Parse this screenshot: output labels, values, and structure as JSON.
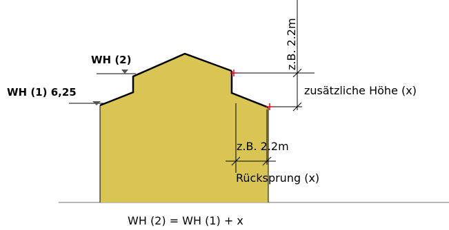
{
  "labels": {
    "wh2": "WH (2)",
    "wh1": "WH (1) 6,25",
    "height_example": "z.B. 2.2m",
    "additional_height": "zusätzliche Höhe (x)",
    "setback_example": "z.B. 2.2m",
    "setback": "Rücksprung (x)",
    "formula": "WH (2) = WH (1) + x"
  },
  "colors": {
    "building_fill": "#D9C554",
    "roof_outline": "#000000",
    "ground_line": "#A0A0A0",
    "marker_cross": "#E8001C",
    "wh_marker": "#555555"
  }
}
